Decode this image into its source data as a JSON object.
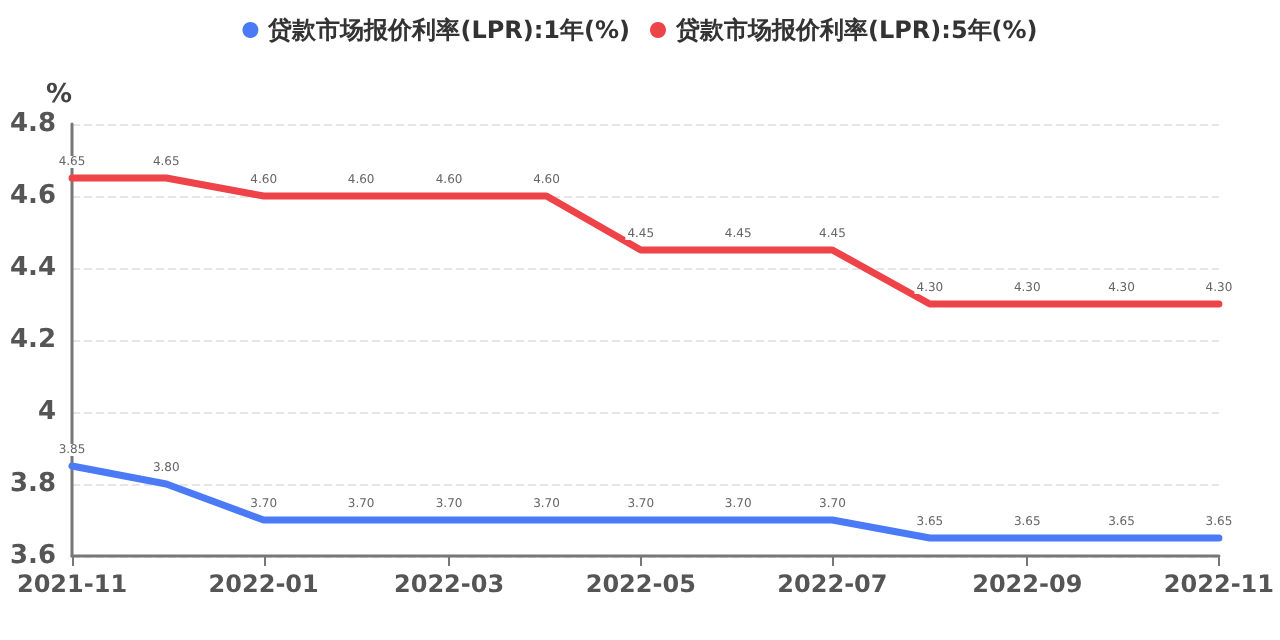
{
  "chart_data": {
    "type": "line",
    "ylabel": "%",
    "x": [
      "2021-11",
      "2021-12",
      "2022-01",
      "2022-02",
      "2022-03",
      "2022-04",
      "2022-05",
      "2022-06",
      "2022-07",
      "2022-08",
      "2022-09",
      "2022-10",
      "2022-11"
    ],
    "series": [
      {
        "name": "贷款市场报价利率(LPR):1年(%)",
        "color": "#4a7af5",
        "values": [
          3.85,
          3.8,
          3.7,
          3.7,
          3.7,
          3.7,
          3.7,
          3.7,
          3.7,
          3.65,
          3.65,
          3.65,
          3.65
        ],
        "value_labels": [
          "3.85",
          "3.80",
          "3.70",
          "3.70",
          "3.70",
          "3.70",
          "3.70",
          "3.70",
          "3.70",
          "3.65",
          "3.65",
          "3.65",
          "3.65"
        ]
      },
      {
        "name": "贷款市场报价利率(LPR):5年(%)",
        "color": "#ee4349",
        "values": [
          4.65,
          4.65,
          4.6,
          4.6,
          4.6,
          4.6,
          4.45,
          4.45,
          4.45,
          4.3,
          4.3,
          4.3,
          4.3
        ],
        "value_labels": [
          "4.65",
          "4.65",
          "4.60",
          "4.60",
          "4.60",
          "4.60",
          "4.45",
          "4.45",
          "4.45",
          "4.30",
          "4.30",
          "4.30",
          "4.30"
        ]
      }
    ],
    "xlim": [
      "2021-11",
      "2022-11"
    ],
    "xticks": [
      "2021-11",
      "2022-01",
      "2022-03",
      "2022-05",
      "2022-07",
      "2022-09",
      "2022-11"
    ],
    "ylim": [
      3.6,
      4.8
    ],
    "yticks": [
      3.6,
      3.8,
      4,
      4.2,
      4.4,
      4.6,
      4.8
    ],
    "grid": "y",
    "legend": "top",
    "marker": "none",
    "line_style": "solid"
  }
}
